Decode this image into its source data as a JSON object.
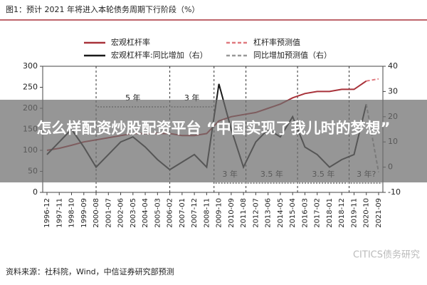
{
  "chart_data": {
    "type": "line",
    "title": "图1：预计 2021 年将进入本轮债务周期下行阶段（%）",
    "x": [
      "1996-12",
      "1997-11",
      "1998-10",
      "1999-09",
      "2000-08",
      "2001-07",
      "2002-06",
      "2003-05",
      "2004-04",
      "2005-03",
      "2006-02",
      "2007-01",
      "2007-12",
      "2008-11",
      "2009-10",
      "2010-09",
      "2011-08",
      "2012-07",
      "2013-06",
      "2014-05",
      "2015-04",
      "2016-03",
      "2017-02",
      "2018-01",
      "2018-12",
      "2019-11",
      "2020-10",
      "2021-09"
    ],
    "series": [
      {
        "name": "宏观杠杆率",
        "color": "#a8323a",
        "dashed": false,
        "values": [
          100,
          105,
          112,
          120,
          125,
          130,
          135,
          140,
          140,
          140,
          140,
          135,
          135,
          140,
          170,
          180,
          185,
          190,
          200,
          210,
          225,
          235,
          240,
          240,
          245,
          245,
          265,
          null
        ]
      },
      {
        "name": "杠杆率预测值",
        "color": "#e07a80",
        "dashed": true,
        "values": [
          null,
          null,
          null,
          null,
          null,
          null,
          null,
          null,
          null,
          null,
          null,
          null,
          null,
          null,
          null,
          null,
          null,
          null,
          null,
          null,
          null,
          null,
          null,
          null,
          null,
          null,
          265,
          270
        ]
      },
      {
        "name": "宏观杠杆率:同比增加（右）",
        "color": "#1a1a1a",
        "dashed": false,
        "axis": "y2",
        "values": [
          5,
          10,
          15,
          8,
          0,
          5,
          10,
          12,
          8,
          3,
          -1,
          2,
          5,
          0,
          33,
          15,
          0,
          10,
          15,
          12,
          20,
          8,
          5,
          0,
          3,
          5,
          25,
          null
        ]
      },
      {
        "name": "同比增加预测值（右）",
        "color": "#999999",
        "dashed": true,
        "axis": "y2",
        "values": [
          null,
          null,
          null,
          null,
          null,
          null,
          null,
          null,
          null,
          null,
          null,
          null,
          null,
          null,
          null,
          null,
          null,
          null,
          null,
          null,
          null,
          null,
          null,
          null,
          null,
          null,
          25,
          -2
        ]
      }
    ],
    "ylim": [
      0,
      300
    ],
    "yticks": [
      0,
      50,
      100,
      150,
      200,
      250,
      300
    ],
    "y2lim": [
      -10,
      40
    ],
    "y2ticks": [
      -10,
      0,
      10,
      20,
      30,
      40
    ],
    "annotations": [
      "5 年",
      "3 年",
      "3 年",
      "3.5 年",
      "3.5 年",
      "3 年?"
    ],
    "source": "资料来源：社科院，Wind，中信证券研究部预测",
    "watermark": "CITICS债务研究",
    "overlay": "怎么样配资炒股配资平台 “中国实现了我儿时的梦想”"
  }
}
